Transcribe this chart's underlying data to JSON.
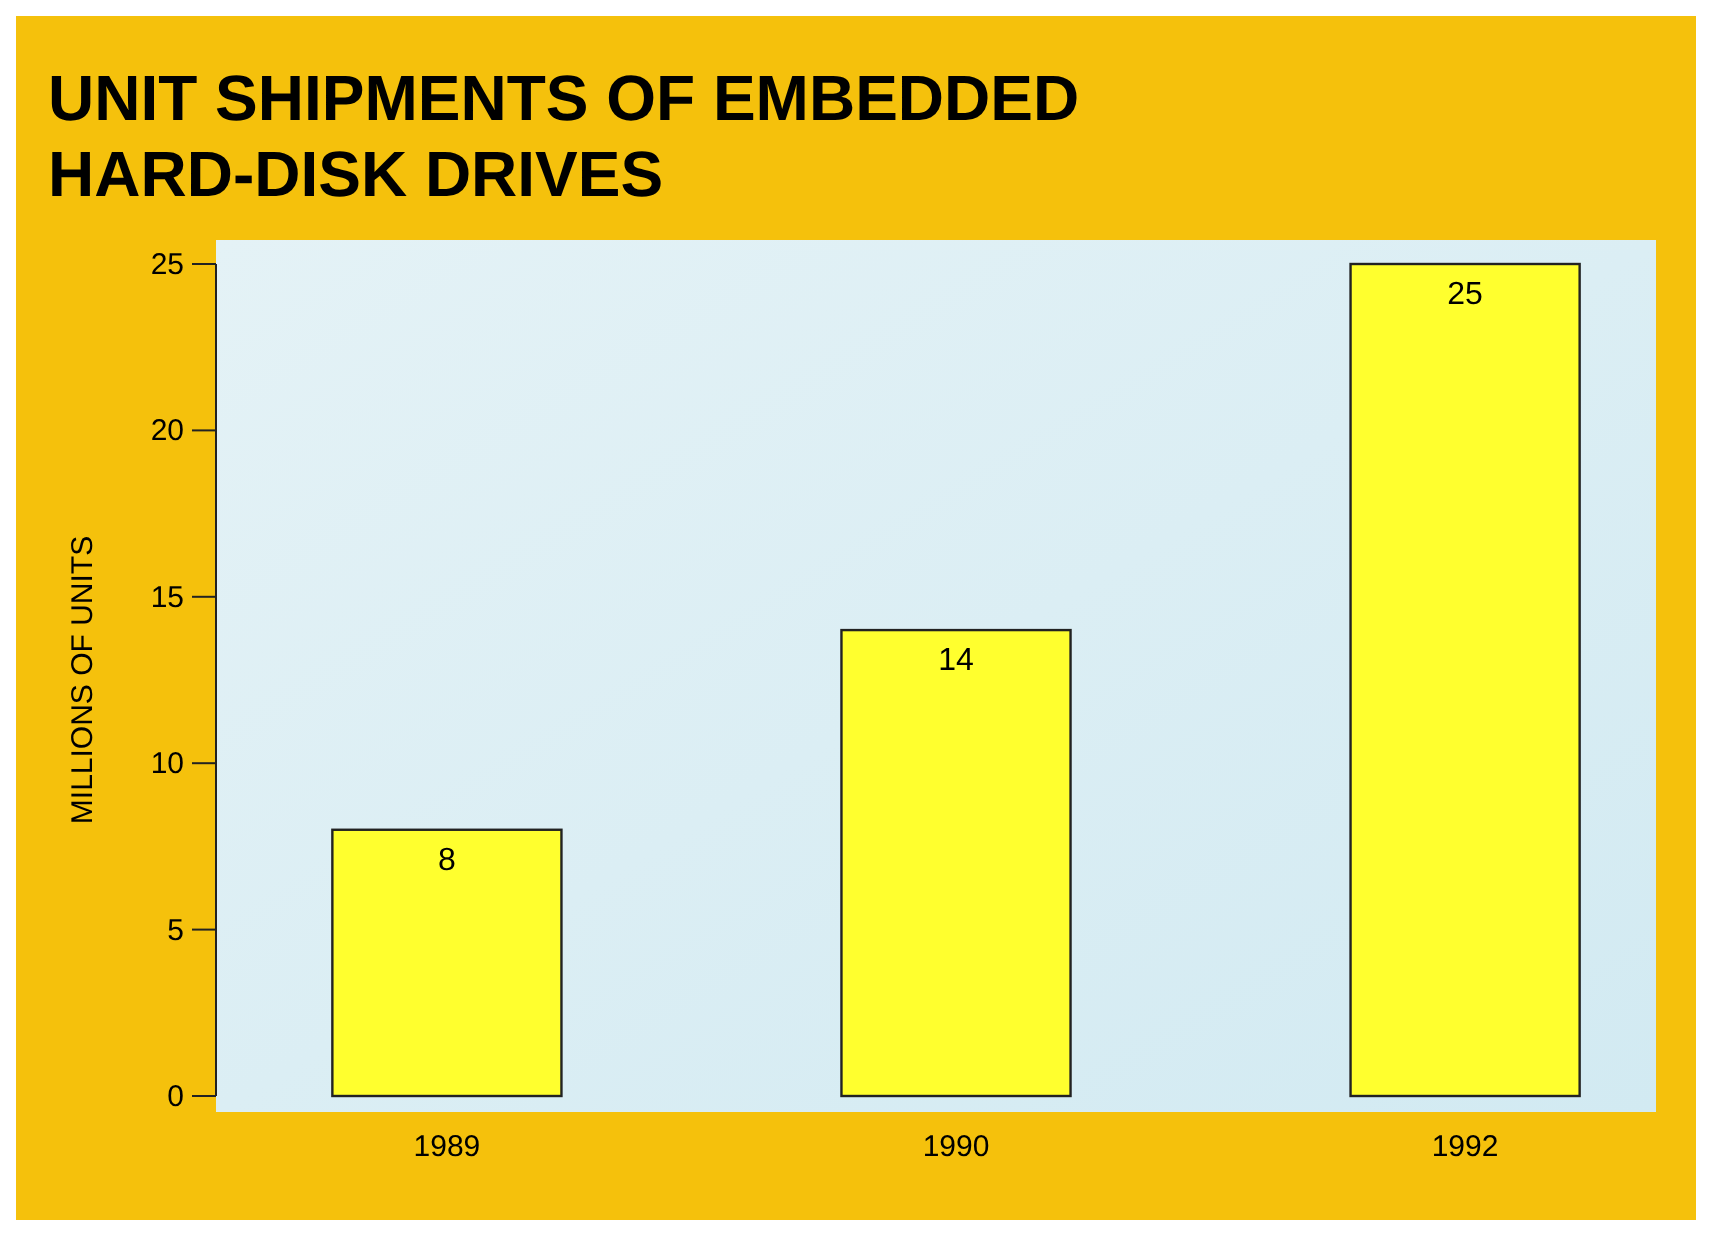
{
  "chart_data": {
    "type": "bar",
    "title": "UNIT SHIPMENTS OF EMBEDDED HARD-DISK DRIVES",
    "ylabel": "MILLIONS OF UNITS",
    "categories": [
      "1989",
      "1990",
      "1992"
    ],
    "values": [
      8,
      14,
      25
    ],
    "color": "#ffff2e",
    "ylim": [
      0,
      25
    ],
    "yticks": [
      0,
      5,
      10,
      15,
      20,
      25
    ],
    "data_labels": true
  }
}
